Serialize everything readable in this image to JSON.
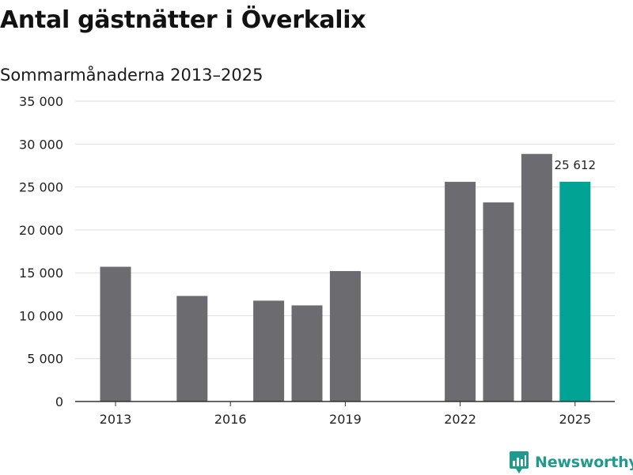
{
  "header": {
    "title": "Antal gästnätter i Överkalix",
    "subtitle": "Sommarmånaderna 2013–2025"
  },
  "brand": {
    "name": "Newsworthy",
    "color": "#1f9a8c"
  },
  "colors": {
    "bar": "#6b6b70",
    "highlight": "#00a394",
    "grid": "#dedede",
    "axis": "#333333"
  },
  "chart_data": {
    "type": "bar",
    "categories": [
      "2013",
      "2014",
      "2015",
      "2016",
      "2017",
      "2018",
      "2019",
      "2020",
      "2021",
      "2022",
      "2023",
      "2024",
      "2025"
    ],
    "values": [
      15700,
      null,
      12300,
      null,
      11750,
      11200,
      15200,
      null,
      null,
      25600,
      23200,
      28850,
      25612
    ],
    "x_tick_labels": [
      "2013",
      "2016",
      "2019",
      "2022",
      "2025"
    ],
    "y_tick_labels": [
      "0",
      "5 000",
      "10 000",
      "15 000",
      "20 000",
      "25 000",
      "30 000",
      "35 000"
    ],
    "ylim": [
      0,
      35000
    ],
    "highlight": {
      "category": "2025",
      "label": "25 612"
    },
    "grid": true
  }
}
